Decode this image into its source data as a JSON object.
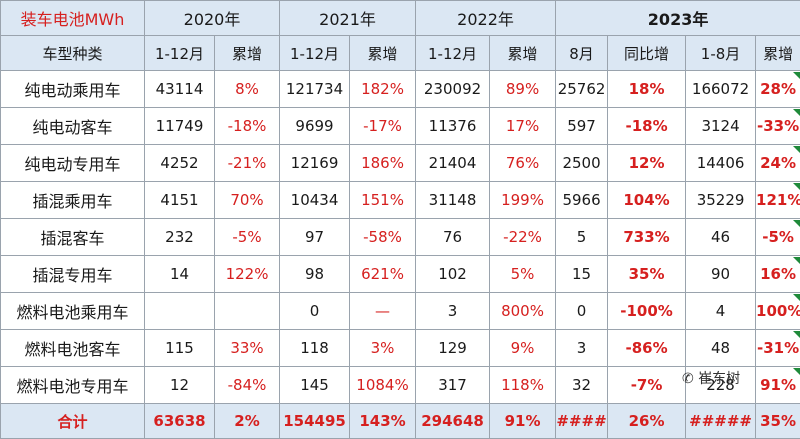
{
  "header": {
    "corner": "装车电池MWh",
    "category_label": "车型种类",
    "years": [
      "2020年",
      "2021年",
      "2022年",
      "2023年"
    ],
    "sub": [
      "1-12月",
      "累增",
      "1-12月",
      "累增",
      "1-12月",
      "累增",
      "8月",
      "同比增",
      "1-8月",
      "累增"
    ]
  },
  "rows": [
    {
      "name": "纯电动乘用车",
      "cells": [
        "43114",
        "8%",
        "121734",
        "182%",
        "230092",
        "89%",
        "25762",
        "18%",
        "166072",
        "28%"
      ]
    },
    {
      "name": "纯电动客车",
      "cells": [
        "11749",
        "-18%",
        "9699",
        "-17%",
        "11376",
        "17%",
        "597",
        "-18%",
        "3124",
        "-33%"
      ]
    },
    {
      "name": "纯电动专用车",
      "cells": [
        "4252",
        "-21%",
        "12169",
        "186%",
        "21404",
        "76%",
        "2500",
        "12%",
        "14406",
        "24%"
      ]
    },
    {
      "name": "插混乘用车",
      "cells": [
        "4151",
        "70%",
        "10434",
        "151%",
        "31148",
        "199%",
        "5966",
        "104%",
        "35229",
        "121%"
      ]
    },
    {
      "name": "插混客车",
      "cells": [
        "232",
        "-5%",
        "97",
        "-58%",
        "76",
        "-22%",
        "5",
        "733%",
        "46",
        "-5%"
      ]
    },
    {
      "name": "插混专用车",
      "cells": [
        "14",
        "122%",
        "98",
        "621%",
        "102",
        "5%",
        "15",
        "35%",
        "90",
        "16%"
      ]
    },
    {
      "name": "燃料电池乘用车",
      "cells": [
        "",
        "",
        "0",
        "—",
        "3",
        "800%",
        "0",
        "-100%",
        "4",
        "100%"
      ]
    },
    {
      "name": "燃料电池客车",
      "cells": [
        "115",
        "33%",
        "118",
        "3%",
        "129",
        "9%",
        "3",
        "-86%",
        "48",
        "-31%"
      ]
    },
    {
      "name": "燃料电池专用车",
      "cells": [
        "12",
        "-84%",
        "145",
        "1084%",
        "317",
        "118%",
        "32",
        "-7%",
        "228",
        "91%"
      ]
    }
  ],
  "total": {
    "name": "合计",
    "cells": [
      "63638",
      "2%",
      "154495",
      "143%",
      "294648",
      "91%",
      "####",
      "26%",
      "#####",
      "35%"
    ]
  },
  "watermark": "崔东树",
  "colors": {
    "accent_red": "#d6201f",
    "header_bg": "#dbe7f3",
    "flag_green": "#1f8a3a"
  }
}
